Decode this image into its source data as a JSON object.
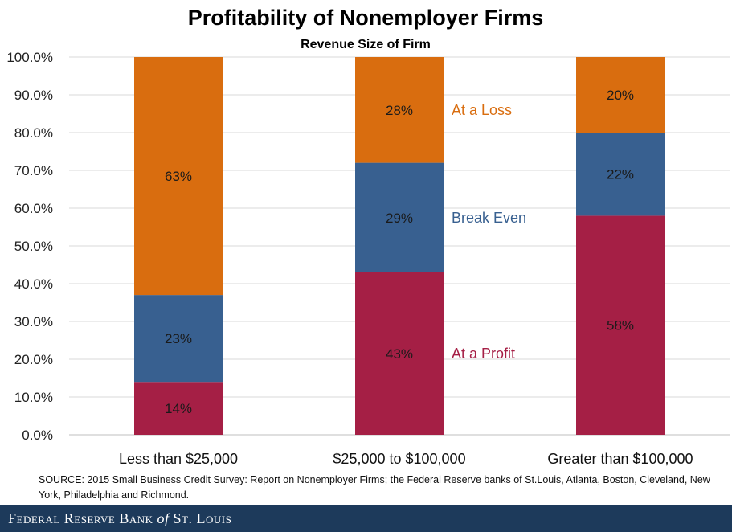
{
  "chart_data": {
    "type": "bar",
    "stacked": true,
    "title": "Profitability of Nonemployer Firms",
    "subtitle": "Revenue Size of Firm",
    "categories": [
      "Less than $25,000",
      "$25,000 to $100,000",
      "Greater than $100,000"
    ],
    "series": [
      {
        "name": "At a Profit",
        "values": [
          14,
          43,
          58
        ],
        "labels": [
          "14%",
          "43%",
          "58%"
        ],
        "color": "#a51f45"
      },
      {
        "name": "Break Even",
        "values": [
          23,
          29,
          22
        ],
        "labels": [
          "23%",
          "29%",
          "22%"
        ],
        "color": "#386090"
      },
      {
        "name": "At a Loss",
        "values": [
          63,
          28,
          20
        ],
        "labels": [
          "63%",
          "28%",
          "20%"
        ],
        "color": "#d96d0f"
      }
    ],
    "legend_position": "inline-right-of-middle-bar",
    "ylim": [
      0,
      100
    ],
    "y_ticks": [
      0,
      10,
      20,
      30,
      40,
      50,
      60,
      70,
      80,
      90,
      100
    ],
    "y_tick_labels": [
      "0.0%",
      "10.0%",
      "20.0%",
      "30.0%",
      "40.0%",
      "50.0%",
      "60.0%",
      "70.0%",
      "80.0%",
      "90.0%",
      "100.0%"
    ],
    "grid": true
  },
  "source": "SOURCE: 2015 Small Business Credit Survey: Report on Nonemployer Firms; the Federal Reserve banks of St.Louis, Atlanta, Boston, Cleveland, New York, Philadelphia and Richmond.",
  "footer": {
    "text": "Federal Reserve Bank of St. Louis",
    "main": "Federal Reserve Bank",
    "of": "of",
    "city": "St. Louis"
  }
}
